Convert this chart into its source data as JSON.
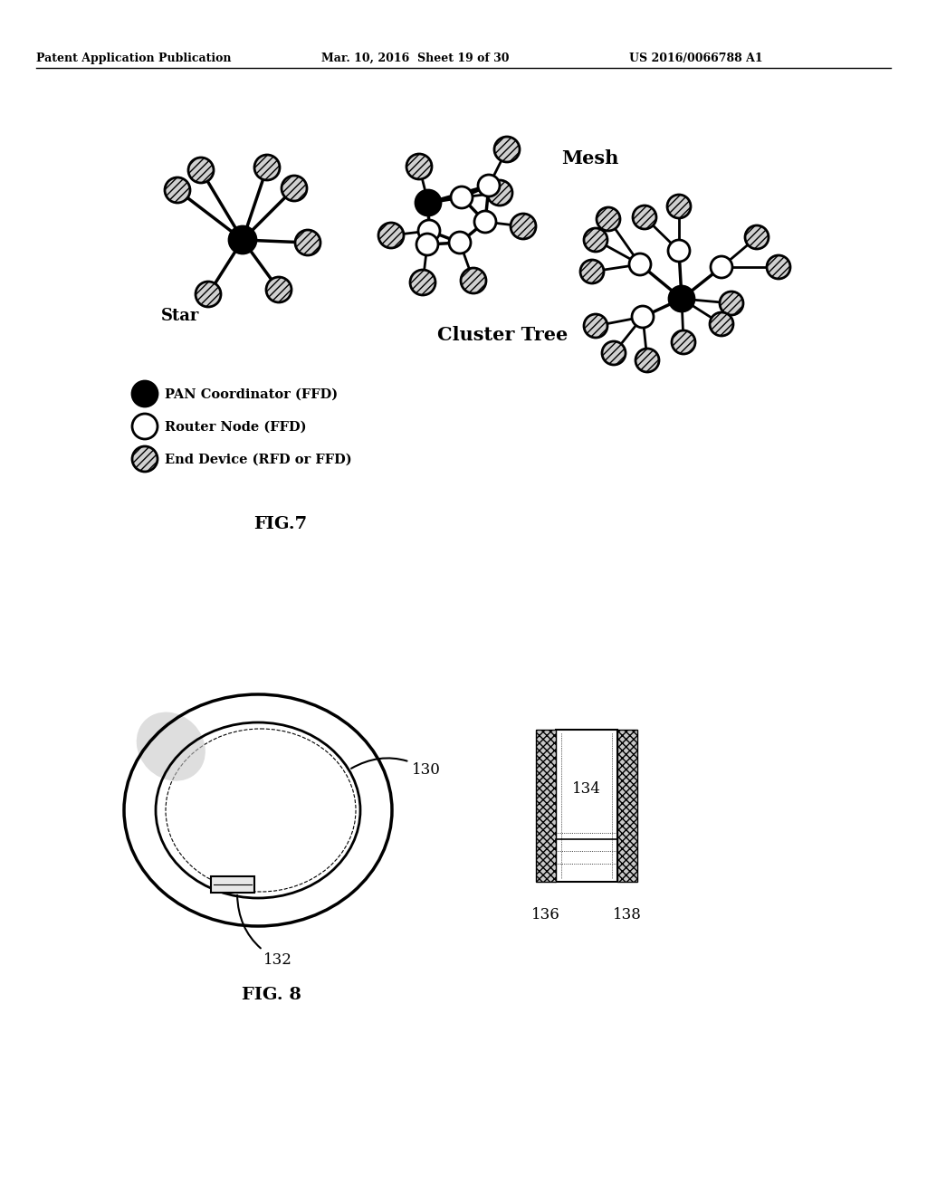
{
  "bg_color": "#ffffff",
  "header_left": "Patent Application Publication",
  "header_mid": "Mar. 10, 2016  Sheet 19 of 30",
  "header_right": "US 2016/0066788 A1",
  "fig7_label": "FIG.7",
  "fig8_label": "FIG. 8",
  "legend_pan_text": "PAN Coordinator (FFD)",
  "legend_router_text": "Router Node (FFD)",
  "legend_end_text": "End Device (RFD or FFD)",
  "mesh_label": "Mesh",
  "cluster_label": "Cluster Tree",
  "star_label": "Star"
}
